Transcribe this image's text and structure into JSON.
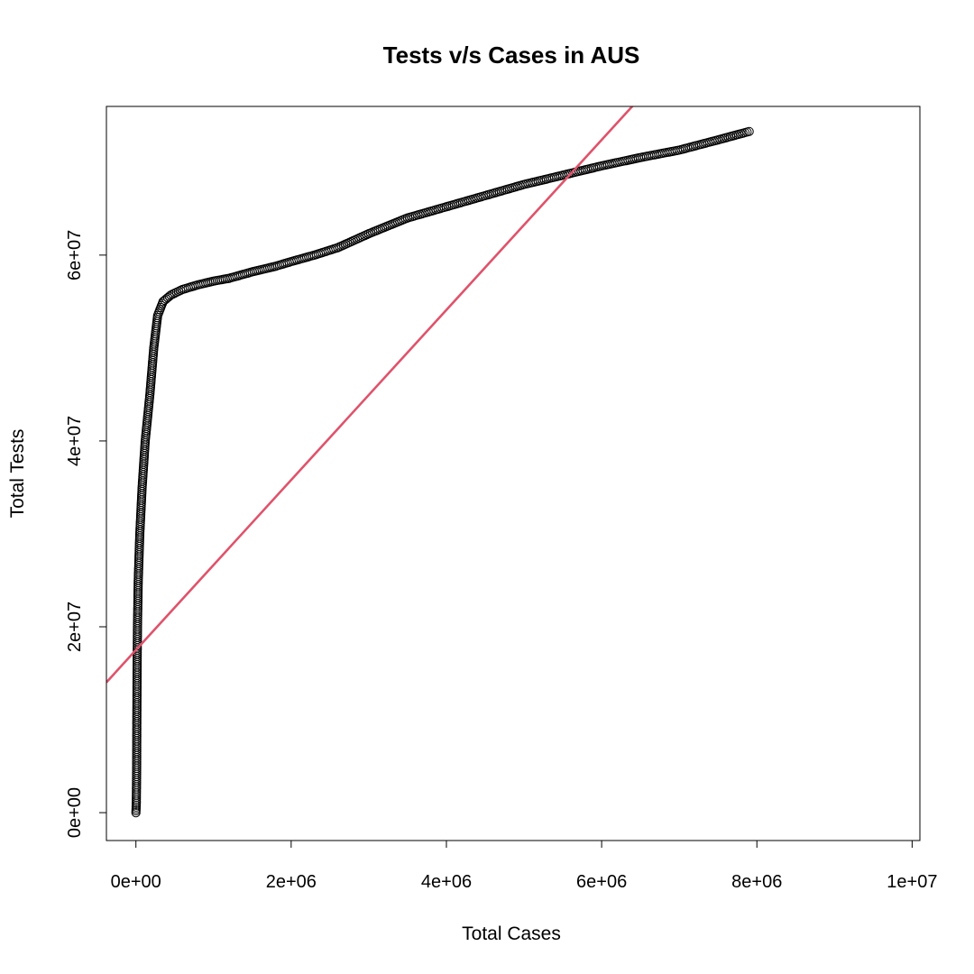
{
  "chart_data": {
    "type": "scatter",
    "title": "Tests v/s Cases in AUS",
    "xlabel": "Total Cases",
    "ylabel": "Total Tests",
    "xlim": [
      -380000,
      10100000
    ],
    "ylim": [
      -3000000,
      76000000
    ],
    "x_ticks": [
      0,
      2000000,
      4000000,
      6000000,
      8000000,
      10000000
    ],
    "x_tick_labels": [
      "0e+00",
      "2e+06",
      "4e+06",
      "6e+06",
      "8e+06",
      "1e+07"
    ],
    "y_ticks": [
      0,
      20000000,
      40000000,
      60000000
    ],
    "y_tick_labels": [
      "0e+00",
      "2e+07",
      "4e+07",
      "6e+07"
    ],
    "grid": false,
    "legend": "none",
    "colors": {
      "points": "#000000",
      "fit_line": "#DF536B"
    },
    "trend_points": [
      [
        0,
        0
      ],
      [
        5000,
        1000000
      ],
      [
        10000,
        5000000
      ],
      [
        12000,
        10000000
      ],
      [
        15000,
        15000000
      ],
      [
        20000,
        20000000
      ],
      [
        30000,
        25000000
      ],
      [
        50000,
        30000000
      ],
      [
        80000,
        35000000
      ],
      [
        120000,
        40000000
      ],
      [
        180000,
        45000000
      ],
      [
        230000,
        50000000
      ],
      [
        280000,
        53500000
      ],
      [
        350000,
        55000000
      ],
      [
        450000,
        55700000
      ],
      [
        600000,
        56300000
      ],
      [
        800000,
        56800000
      ],
      [
        1000000,
        57200000
      ],
      [
        1200000,
        57500000
      ],
      [
        1500000,
        58200000
      ],
      [
        1800000,
        58800000
      ],
      [
        2000000,
        59300000
      ],
      [
        2300000,
        60000000
      ],
      [
        2600000,
        60800000
      ],
      [
        3000000,
        62300000
      ],
      [
        3500000,
        64000000
      ],
      [
        4000000,
        65200000
      ],
      [
        4500000,
        66400000
      ],
      [
        5000000,
        67600000
      ],
      [
        5500000,
        68600000
      ],
      [
        6000000,
        69600000
      ],
      [
        6500000,
        70500000
      ],
      [
        7000000,
        71300000
      ],
      [
        7500000,
        72400000
      ],
      [
        7900000,
        73300000
      ]
    ],
    "fit_line": {
      "intercept": 17500000,
      "slope": 9.15
    }
  }
}
